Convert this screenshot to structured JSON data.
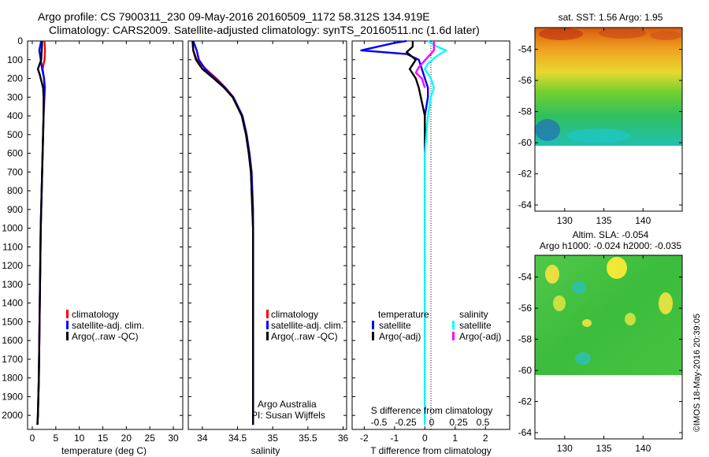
{
  "header": {
    "line1": "Argo profile: CS 7900311_230 09-May-2016 20160509_1172 58.312S 134.919E",
    "line2": "Climatology: CARS2009. Satellite-adjusted climatology: synTS_20160511.nc (1.6d later)"
  },
  "colors": {
    "red": "#ff0000",
    "blue": "#0000ff",
    "black": "#000000",
    "cyan": "#00ffff",
    "magenta": "#ff00ff"
  },
  "depth_ticks": [
    "0",
    "100",
    "200",
    "300",
    "400",
    "500",
    "600",
    "700",
    "800",
    "900",
    "1000",
    "1100",
    "1200",
    "1300",
    "1400",
    "1500",
    "1600",
    "1700",
    "1800",
    "1900",
    "2000"
  ],
  "panels": {
    "temperature": {
      "xlabel": "temperature (deg C)",
      "xticks": [
        "0",
        "5",
        "10",
        "15",
        "20",
        "25",
        "30"
      ],
      "legend": [
        "climatology",
        "satellite-adj. clim.",
        "Argo(..raw -QC)"
      ]
    },
    "salinity": {
      "xlabel": "salinity",
      "xticks": [
        "34",
        "34.5",
        "35",
        "35.5",
        "36"
      ],
      "legend": [
        "climatology",
        "satellite-adj. clim.",
        "Argo(..raw -QC)"
      ],
      "credit1": "Argo Australia",
      "credit2": "PI: Susan Wijffels"
    },
    "difference": {
      "xlabel": "T difference from climatology",
      "xticks": [
        "-2",
        "-1",
        "0",
        "1",
        "2"
      ],
      "top_label": "S difference from climatology",
      "top_ticks": [
        "-0.5",
        "-0.25",
        "0",
        "0.25",
        "0.5"
      ],
      "legend_t_head": "temperature",
      "legend_s_head": "salinity",
      "legend_t": [
        "satellite",
        "Argo(-adj)"
      ],
      "legend_s": [
        "satellite",
        "Argo(-adj)"
      ]
    }
  },
  "maps": {
    "sst_title": "sat. SST: 1.56 Argo: 1.95",
    "sla_title1": "Altim. SLA: -0.054",
    "sla_title2": "Argo h1000: -0.024 h2000: -0.035",
    "lat_ticks": [
      "-54",
      "-56",
      "-58",
      "-60",
      "-62",
      "-64"
    ],
    "lon_ticks": [
      "130",
      "135",
      "140"
    ]
  },
  "watermark": "©IMOS 18-May-2016 20:39:05",
  "chart_data": [
    {
      "type": "line",
      "title": "",
      "xlabel": "temperature (deg C)",
      "ylabel": "",
      "xlim": [
        -1,
        32
      ],
      "ylim": [
        2075,
        0
      ],
      "series": [
        {
          "name": "climatology",
          "color": "#ff0000",
          "x": [
            2.6,
            2.7,
            2.6,
            2.2,
            2.5,
            2.7,
            2.6,
            2.4,
            2.3,
            2.2,
            2.1,
            2.0,
            1.9,
            1.8,
            1.7,
            1.6,
            1.5,
            1.4,
            1.3,
            1.2,
            1.1
          ],
          "y": [
            0,
            50,
            100,
            150,
            200,
            250,
            300,
            400,
            500,
            600,
            700,
            800,
            900,
            1000,
            1200,
            1400,
            1600,
            1800,
            1900,
            2000,
            2050
          ]
        },
        {
          "name": "satellite-adj. clim.",
          "color": "#0000ff",
          "x": [
            1.9,
            1.5,
            1.8,
            2.1,
            2.5,
            2.6,
            2.5,
            2.4,
            2.3,
            2.2,
            2.1,
            2.0,
            1.9,
            1.8,
            1.7,
            1.6,
            1.5,
            1.4,
            1.3,
            1.2,
            1.1
          ],
          "y": [
            0,
            50,
            100,
            150,
            200,
            250,
            300,
            400,
            500,
            600,
            700,
            800,
            900,
            1000,
            1200,
            1400,
            1600,
            1800,
            1900,
            2000,
            2050
          ]
        },
        {
          "name": "Argo(..raw -QC)",
          "color": "#000000",
          "x": [
            2.1,
            2.0,
            1.9,
            1.2,
            1.6,
            2.3,
            2.4,
            2.4,
            2.3,
            2.2,
            2.1,
            2.0,
            1.9,
            1.8,
            1.7,
            1.6,
            1.5,
            1.4,
            1.3,
            1.2,
            1.1
          ],
          "y": [
            0,
            50,
            100,
            150,
            180,
            250,
            300,
            400,
            500,
            600,
            700,
            800,
            900,
            1000,
            1200,
            1400,
            1600,
            1800,
            1900,
            2000,
            2050
          ]
        }
      ]
    },
    {
      "type": "line",
      "title": "",
      "xlabel": "salinity",
      "ylabel": "",
      "xlim": [
        33.8,
        36.05
      ],
      "ylim": [
        2075,
        0
      ],
      "series": [
        {
          "name": "climatology",
          "color": "#ff0000",
          "x": [
            33.86,
            33.87,
            33.92,
            34.05,
            34.2,
            34.33,
            34.44,
            34.56,
            34.62,
            34.66,
            34.69,
            34.7,
            34.71,
            34.72,
            34.72,
            34.72,
            34.72,
            34.72,
            34.72,
            34.72,
            34.72
          ],
          "y": [
            0,
            50,
            100,
            150,
            200,
            250,
            300,
            400,
            500,
            600,
            700,
            800,
            900,
            1000,
            1200,
            1400,
            1600,
            1800,
            1900,
            2000,
            2050
          ]
        },
        {
          "name": "satellite-adj. clim.",
          "color": "#0000ff",
          "x": [
            33.87,
            33.92,
            33.95,
            34.04,
            34.18,
            34.32,
            34.44,
            34.57,
            34.63,
            34.67,
            34.7,
            34.71,
            34.72,
            34.72,
            34.72,
            34.72,
            34.72,
            34.72,
            34.72,
            34.72,
            34.72
          ],
          "y": [
            0,
            50,
            100,
            150,
            200,
            250,
            300,
            400,
            500,
            600,
            700,
            800,
            900,
            1000,
            1200,
            1400,
            1600,
            1800,
            1900,
            2000,
            2050
          ]
        },
        {
          "name": "Argo(..raw -QC)",
          "color": "#000000",
          "x": [
            33.86,
            33.87,
            33.91,
            34.0,
            34.16,
            34.31,
            34.43,
            34.56,
            34.62,
            34.66,
            34.69,
            34.7,
            34.71,
            34.72,
            34.72,
            34.72,
            34.72,
            34.72,
            34.72,
            34.72,
            34.72
          ],
          "y": [
            0,
            50,
            100,
            150,
            200,
            250,
            300,
            400,
            500,
            600,
            700,
            800,
            900,
            1000,
            1200,
            1400,
            1600,
            1800,
            1900,
            2000,
            2050
          ]
        }
      ]
    },
    {
      "type": "line",
      "title": "",
      "xlabel": "T difference from climatology",
      "ylabel": "",
      "xlim": [
        -2.4,
        2.8
      ],
      "ylim": [
        2075,
        0
      ],
      "series": [
        {
          "name": "temperature satellite",
          "color": "#0000ff",
          "x": [
            -0.6,
            -1.0,
            -2.1,
            -0.6,
            -0.2,
            -0.1,
            0.1,
            0.1,
            0.0,
            0.0,
            0.0,
            0.0,
            0.0,
            0.0
          ],
          "y": [
            0,
            10,
            50,
            70,
            100,
            150,
            250,
            300,
            400,
            600,
            1000,
            1400,
            1800,
            2050
          ]
        },
        {
          "name": "temperature Argo(-adj)",
          "color": "#000000",
          "x": [
            -0.4,
            -0.4,
            -0.6,
            -0.3,
            -0.5,
            -0.3,
            -0.2,
            0.0,
            0.0,
            0.0,
            0.0
          ],
          "y": [
            0,
            30,
            60,
            100,
            150,
            200,
            250,
            400,
            600,
            800,
            1000
          ]
        },
        {
          "name": "salinity satellite",
          "color": "#00ffff",
          "x": [
            0.1,
            0.4,
            0.7,
            0.4,
            0.1,
            0.0,
            0.2,
            0.3,
            0.2,
            0.1,
            0.0,
            0.0,
            0.0,
            0.0
          ],
          "y": [
            0,
            30,
            50,
            80,
            120,
            150,
            200,
            250,
            300,
            400,
            600,
            1000,
            1500,
            2050
          ]
        },
        {
          "name": "salinity Argo(-adj)",
          "color": "#ff00ff",
          "x": [
            0.3,
            0.3,
            -0.2,
            -0.3,
            -0.1,
            0.0
          ],
          "y": [
            0,
            50,
            140,
            170,
            200,
            250
          ]
        }
      ]
    }
  ]
}
